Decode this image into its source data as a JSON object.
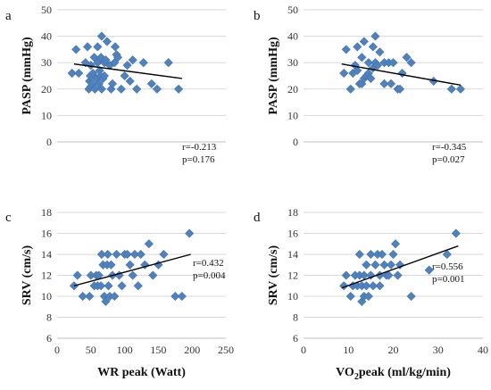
{
  "chart_data": [
    {
      "type": "scatter",
      "panel": "a",
      "ylabel": "PASP (mmHg)",
      "xlabel": "",
      "xlim": [
        0,
        250
      ],
      "xticks": [
        0,
        50,
        100,
        150,
        200,
        250
      ],
      "xticklabels": [
        "",
        "",
        "",
        "",
        "",
        ""
      ],
      "ylim": [
        0,
        50
      ],
      "yticks": [
        0,
        10,
        20,
        30,
        40,
        50
      ],
      "yticklabels": [
        "0",
        "10",
        "20",
        "30",
        "40",
        "50"
      ],
      "grid": true,
      "stats": [
        "r=-0.213",
        "p=0.176"
      ],
      "trendline": {
        "x": [
          25,
          185
        ],
        "y": [
          29.5,
          24
        ]
      },
      "points": [
        [
          22,
          26
        ],
        [
          28,
          35
        ],
        [
          32,
          26
        ],
        [
          42,
          30
        ],
        [
          45,
          36
        ],
        [
          47,
          20
        ],
        [
          48,
          23
        ],
        [
          49,
          25
        ],
        [
          50,
          21
        ],
        [
          50,
          29
        ],
        [
          52,
          22
        ],
        [
          53,
          26
        ],
        [
          55,
          32
        ],
        [
          56,
          20
        ],
        [
          58,
          24
        ],
        [
          60,
          30
        ],
        [
          60,
          36
        ],
        [
          62,
          22
        ],
        [
          63,
          27
        ],
        [
          64,
          25
        ],
        [
          65,
          32
        ],
        [
          66,
          20
        ],
        [
          66,
          40
        ],
        [
          68,
          24
        ],
        [
          70,
          25
        ],
        [
          70,
          30
        ],
        [
          72,
          31
        ],
        [
          74,
          38
        ],
        [
          78,
          29
        ],
        [
          80,
          20
        ],
        [
          82,
          22
        ],
        [
          85,
          30
        ],
        [
          86,
          36
        ],
        [
          88,
          33
        ],
        [
          90,
          32
        ],
        [
          95,
          20
        ],
        [
          100,
          25
        ],
        [
          104,
          29
        ],
        [
          108,
          23
        ],
        [
          112,
          31
        ],
        [
          118,
          20
        ],
        [
          128,
          30
        ],
        [
          140,
          22
        ],
        [
          148,
          20
        ],
        [
          165,
          30
        ],
        [
          180,
          20
        ]
      ]
    },
    {
      "type": "scatter",
      "panel": "b",
      "ylabel": "PASP (mmHg)",
      "xlabel": "",
      "xlim": [
        0,
        40
      ],
      "xticks": [
        0,
        10,
        20,
        30,
        40
      ],
      "xticklabels": [
        "",
        "",
        "",
        "",
        ""
      ],
      "ylim": [
        0,
        50
      ],
      "yticks": [
        0,
        10,
        20,
        30,
        40,
        50
      ],
      "yticklabels": [
        "0",
        "10",
        "20",
        "30",
        "40",
        "50"
      ],
      "grid": true,
      "stats": [
        "r=-0.345",
        "p=0.027"
      ],
      "trendline": {
        "x": [
          8.5,
          35
        ],
        "y": [
          29.5,
          21.5
        ]
      },
      "points": [
        [
          9,
          26
        ],
        [
          9.5,
          35
        ],
        [
          10.5,
          20
        ],
        [
          11,
          26
        ],
        [
          11.5,
          29
        ],
        [
          12,
          27
        ],
        [
          12,
          36
        ],
        [
          12.5,
          22
        ],
        [
          13,
          22
        ],
        [
          13,
          32
        ],
        [
          13.5,
          24
        ],
        [
          13.5,
          38
        ],
        [
          14,
          25
        ],
        [
          14.5,
          26
        ],
        [
          14.5,
          30
        ],
        [
          15,
          24
        ],
        [
          15.5,
          28
        ],
        [
          15.5,
          36
        ],
        [
          16,
          30
        ],
        [
          16,
          40
        ],
        [
          16.5,
          29
        ],
        [
          17,
          34
        ],
        [
          18,
          30
        ],
        [
          18,
          22
        ],
        [
          19,
          30
        ],
        [
          19.5,
          22
        ],
        [
          20,
          30
        ],
        [
          21,
          20
        ],
        [
          21.5,
          20
        ],
        [
          22,
          26
        ],
        [
          23,
          32
        ],
        [
          24,
          30
        ],
        [
          29,
          23
        ],
        [
          33,
          20
        ],
        [
          35,
          20
        ]
      ]
    },
    {
      "type": "scatter",
      "panel": "c",
      "ylabel": "SRV (cm/s)",
      "xlabel": "WR peak (Watt)",
      "xlim": [
        0,
        250
      ],
      "xticks": [
        0,
        50,
        100,
        150,
        200,
        250
      ],
      "xticklabels": [
        "0",
        "50",
        "100",
        "150",
        "200",
        "250"
      ],
      "ylim": [
        6,
        18
      ],
      "yticks": [
        6,
        8,
        10,
        12,
        14,
        16,
        18
      ],
      "yticklabels": [
        "6",
        "8",
        "10",
        "12",
        "14",
        "16",
        "18"
      ],
      "grid": true,
      "stats": [
        "r=0.432",
        "p=0.004"
      ],
      "trendline": {
        "x": [
          25,
          198
        ],
        "y": [
          11.0,
          14.0
        ]
      },
      "points": [
        [
          25,
          11
        ],
        [
          30,
          12
        ],
        [
          38,
          10
        ],
        [
          48,
          10
        ],
        [
          50,
          12
        ],
        [
          55,
          11
        ],
        [
          58,
          12
        ],
        [
          60,
          11
        ],
        [
          62,
          12
        ],
        [
          65,
          11
        ],
        [
          66,
          14
        ],
        [
          68,
          13
        ],
        [
          70,
          10
        ],
        [
          72,
          9.5
        ],
        [
          74,
          13
        ],
        [
          75,
          14
        ],
        [
          76,
          11
        ],
        [
          78,
          10
        ],
        [
          80,
          13
        ],
        [
          82,
          12
        ],
        [
          85,
          10
        ],
        [
          88,
          14
        ],
        [
          92,
          12
        ],
        [
          96,
          11
        ],
        [
          100,
          14
        ],
        [
          104,
          14
        ],
        [
          108,
          13
        ],
        [
          112,
          12
        ],
        [
          115,
          14
        ],
        [
          120,
          11
        ],
        [
          124,
          14
        ],
        [
          130,
          13
        ],
        [
          136,
          15
        ],
        [
          142,
          12
        ],
        [
          150,
          13
        ],
        [
          158,
          14
        ],
        [
          175,
          10
        ],
        [
          185,
          10
        ],
        [
          196,
          16
        ]
      ]
    },
    {
      "type": "scatter",
      "panel": "d",
      "ylabel": "SRV (cm/s)",
      "xlabel_parts": [
        "VO",
        "2",
        "peak (ml/kg/min)"
      ],
      "xlim": [
        0,
        40
      ],
      "xticks": [
        0,
        10,
        20,
        30,
        40
      ],
      "xticklabels": [
        "0",
        "10",
        "20",
        "30",
        "40"
      ],
      "ylim": [
        6,
        18
      ],
      "yticks": [
        6,
        8,
        10,
        12,
        14,
        16,
        18
      ],
      "yticklabels": [
        "6",
        "8",
        "10",
        "12",
        "14",
        "16",
        "18"
      ],
      "grid": true,
      "stats": [
        "r=0.556",
        "p=0.001"
      ],
      "trendline": {
        "x": [
          8.5,
          34.5
        ],
        "y": [
          10.8,
          14.8
        ]
      },
      "points": [
        [
          9,
          11
        ],
        [
          9.5,
          12
        ],
        [
          10.5,
          10
        ],
        [
          11,
          11
        ],
        [
          11.5,
          12
        ],
        [
          12,
          11
        ],
        [
          12.5,
          12
        ],
        [
          12.5,
          14
        ],
        [
          13,
          9.5
        ],
        [
          13,
          11
        ],
        [
          13.5,
          10
        ],
        [
          13.5,
          12
        ],
        [
          14,
          11
        ],
        [
          14,
          13
        ],
        [
          14.5,
          10
        ],
        [
          15,
          12
        ],
        [
          15,
          14
        ],
        [
          15.5,
          11
        ],
        [
          16,
          13
        ],
        [
          16.5,
          14
        ],
        [
          17,
          11
        ],
        [
          17,
          12
        ],
        [
          17.5,
          14
        ],
        [
          18,
          13
        ],
        [
          18.5,
          12
        ],
        [
          19,
          12
        ],
        [
          19.5,
          13
        ],
        [
          20,
          14
        ],
        [
          20.5,
          15
        ],
        [
          21,
          12
        ],
        [
          21.5,
          13
        ],
        [
          24,
          10
        ],
        [
          28,
          12.5
        ],
        [
          32,
          14
        ],
        [
          34,
          16
        ]
      ]
    }
  ]
}
